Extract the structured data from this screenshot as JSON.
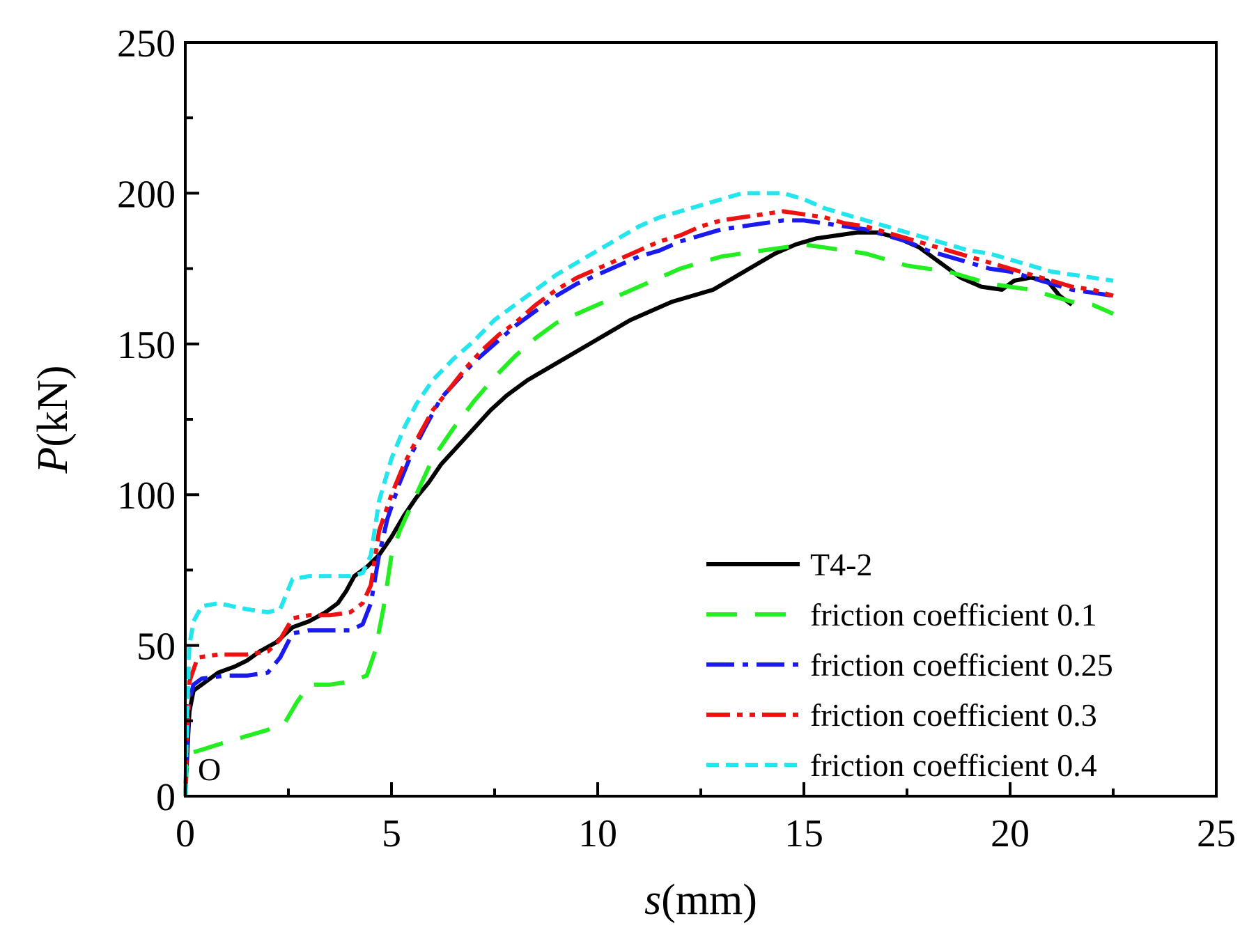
{
  "chart_data": {
    "type": "line",
    "xlabel_italic": "s",
    "xlabel_unit": "(mm)",
    "ylabel_italic": "P",
    "ylabel_unit": "(kN)",
    "xlim": [
      0,
      25
    ],
    "ylim": [
      0,
      250
    ],
    "xticks": [
      0,
      5,
      10,
      15,
      20,
      25
    ],
    "yticks": [
      0,
      50,
      100,
      150,
      200,
      250
    ],
    "xtick_labels": [
      "0",
      "5",
      "10",
      "15",
      "20",
      "25"
    ],
    "ytick_labels": [
      "0",
      "50",
      "100",
      "150",
      "200",
      "250"
    ],
    "annotation": "O",
    "legend_position": "bottom-right",
    "grid": false,
    "series": [
      {
        "name": "T4-2",
        "color": "#000000",
        "dash": "solid",
        "points": [
          [
            0,
            0
          ],
          [
            0.05,
            15
          ],
          [
            0.1,
            28
          ],
          [
            0.2,
            35
          ],
          [
            0.5,
            38
          ],
          [
            0.8,
            41
          ],
          [
            1.2,
            43
          ],
          [
            1.5,
            45
          ],
          [
            1.8,
            48
          ],
          [
            2.2,
            51
          ],
          [
            2.6,
            56
          ],
          [
            3.0,
            58
          ],
          [
            3.4,
            61
          ],
          [
            3.7,
            64
          ],
          [
            3.9,
            68
          ],
          [
            4.1,
            73
          ],
          [
            4.4,
            76
          ],
          [
            4.7,
            80
          ],
          [
            5.0,
            86
          ],
          [
            5.3,
            93
          ],
          [
            5.6,
            99
          ],
          [
            5.9,
            104
          ],
          [
            6.2,
            110
          ],
          [
            6.6,
            116
          ],
          [
            7.0,
            122
          ],
          [
            7.4,
            128
          ],
          [
            7.8,
            133
          ],
          [
            8.3,
            138
          ],
          [
            8.8,
            142
          ],
          [
            9.3,
            146
          ],
          [
            9.8,
            150
          ],
          [
            10.3,
            154
          ],
          [
            10.8,
            158
          ],
          [
            11.3,
            161
          ],
          [
            11.8,
            164
          ],
          [
            12.3,
            166
          ],
          [
            12.8,
            168
          ],
          [
            13.3,
            172
          ],
          [
            13.8,
            176
          ],
          [
            14.3,
            180
          ],
          [
            14.8,
            183
          ],
          [
            15.3,
            185
          ],
          [
            15.8,
            186
          ],
          [
            16.3,
            187
          ],
          [
            16.8,
            187
          ],
          [
            17.3,
            185
          ],
          [
            17.8,
            182
          ],
          [
            18.3,
            177
          ],
          [
            18.8,
            172
          ],
          [
            19.3,
            169
          ],
          [
            19.8,
            168
          ],
          [
            20.1,
            171
          ],
          [
            20.5,
            172
          ],
          [
            20.9,
            171
          ],
          [
            21.2,
            166
          ],
          [
            21.5,
            163
          ]
        ]
      },
      {
        "name": "friction coefficient 0.1",
        "color": "#22ee22",
        "dash": "long-dash",
        "points": [
          [
            0,
            0
          ],
          [
            0.05,
            14
          ],
          [
            0.3,
            15
          ],
          [
            1.0,
            18
          ],
          [
            2.0,
            22
          ],
          [
            2.4,
            24
          ],
          [
            2.7,
            31
          ],
          [
            3.0,
            37
          ],
          [
            3.5,
            37
          ],
          [
            4.0,
            38
          ],
          [
            4.4,
            40
          ],
          [
            4.6,
            48
          ],
          [
            4.8,
            62
          ],
          [
            5.0,
            80
          ],
          [
            5.2,
            88
          ],
          [
            5.6,
            100
          ],
          [
            6.0,
            112
          ],
          [
            6.5,
            122
          ],
          [
            7.0,
            131
          ],
          [
            7.5,
            139
          ],
          [
            8.0,
            146
          ],
          [
            8.5,
            152
          ],
          [
            9.0,
            157
          ],
          [
            9.5,
            160
          ],
          [
            10.0,
            163
          ],
          [
            10.5,
            166
          ],
          [
            11.0,
            169
          ],
          [
            11.5,
            172
          ],
          [
            12.0,
            175
          ],
          [
            12.5,
            177
          ],
          [
            13.0,
            179
          ],
          [
            13.5,
            180
          ],
          [
            14.0,
            181
          ],
          [
            14.5,
            182
          ],
          [
            15.0,
            183
          ],
          [
            15.5,
            182
          ],
          [
            16.0,
            181
          ],
          [
            16.5,
            180
          ],
          [
            17.0,
            178
          ],
          [
            17.5,
            176
          ],
          [
            18.0,
            175
          ],
          [
            18.5,
            174
          ],
          [
            19.0,
            172
          ],
          [
            19.5,
            170
          ],
          [
            20.0,
            169
          ],
          [
            20.5,
            168
          ],
          [
            21.0,
            166
          ],
          [
            21.5,
            164
          ],
          [
            22.0,
            163
          ],
          [
            22.5,
            160
          ]
        ]
      },
      {
        "name": "friction coefficient 0.25",
        "color": "#1a1aee",
        "dash": "dash-dot",
        "points": [
          [
            0,
            0
          ],
          [
            0.05,
            20
          ],
          [
            0.1,
            32
          ],
          [
            0.2,
            37
          ],
          [
            0.4,
            39
          ],
          [
            1.0,
            40
          ],
          [
            1.5,
            40
          ],
          [
            2.0,
            41
          ],
          [
            2.3,
            46
          ],
          [
            2.6,
            54
          ],
          [
            3.0,
            55
          ],
          [
            3.5,
            55
          ],
          [
            4.0,
            55
          ],
          [
            4.3,
            57
          ],
          [
            4.5,
            64
          ],
          [
            4.7,
            80
          ],
          [
            4.9,
            92
          ],
          [
            5.2,
            104
          ],
          [
            5.5,
            114
          ],
          [
            5.8,
            122
          ],
          [
            6.2,
            132
          ],
          [
            6.6,
            138
          ],
          [
            7.0,
            144
          ],
          [
            7.5,
            150
          ],
          [
            8.0,
            156
          ],
          [
            8.5,
            161
          ],
          [
            9.0,
            166
          ],
          [
            9.5,
            170
          ],
          [
            10.0,
            173
          ],
          [
            10.5,
            176
          ],
          [
            11.0,
            179
          ],
          [
            11.5,
            181
          ],
          [
            12.0,
            184
          ],
          [
            12.5,
            186
          ],
          [
            13.0,
            188
          ],
          [
            13.5,
            189
          ],
          [
            14.0,
            190
          ],
          [
            14.5,
            191
          ],
          [
            15.0,
            191
          ],
          [
            15.5,
            190
          ],
          [
            16.0,
            189
          ],
          [
            16.5,
            188
          ],
          [
            17.0,
            186
          ],
          [
            17.5,
            184
          ],
          [
            18.0,
            181
          ],
          [
            18.5,
            179
          ],
          [
            19.0,
            177
          ],
          [
            19.5,
            175
          ],
          [
            20.0,
            174
          ],
          [
            20.5,
            172
          ],
          [
            21.0,
            170
          ],
          [
            21.5,
            168
          ],
          [
            22.0,
            167
          ],
          [
            22.5,
            166
          ]
        ]
      },
      {
        "name": "friction coefficient 0.3",
        "color": "#ee1111",
        "dash": "dash-dot-dot",
        "points": [
          [
            0,
            0
          ],
          [
            0.05,
            22
          ],
          [
            0.1,
            38
          ],
          [
            0.3,
            46
          ],
          [
            0.8,
            47
          ],
          [
            1.5,
            47
          ],
          [
            2.0,
            48
          ],
          [
            2.3,
            52
          ],
          [
            2.6,
            59
          ],
          [
            3.0,
            60
          ],
          [
            3.5,
            60
          ],
          [
            4.0,
            61
          ],
          [
            4.3,
            64
          ],
          [
            4.5,
            70
          ],
          [
            4.7,
            88
          ],
          [
            5.0,
            100
          ],
          [
            5.3,
            110
          ],
          [
            5.6,
            118
          ],
          [
            6.0,
            128
          ],
          [
            6.4,
            135
          ],
          [
            6.8,
            142
          ],
          [
            7.2,
            148
          ],
          [
            7.6,
            153
          ],
          [
            8.0,
            157
          ],
          [
            8.5,
            163
          ],
          [
            9.0,
            168
          ],
          [
            9.5,
            172
          ],
          [
            10.0,
            175
          ],
          [
            10.5,
            178
          ],
          [
            11.0,
            181
          ],
          [
            11.5,
            184
          ],
          [
            12.0,
            186
          ],
          [
            12.5,
            189
          ],
          [
            13.0,
            191
          ],
          [
            13.5,
            192
          ],
          [
            14.0,
            193
          ],
          [
            14.5,
            194
          ],
          [
            15.0,
            193
          ],
          [
            15.5,
            192
          ],
          [
            16.0,
            190
          ],
          [
            16.5,
            189
          ],
          [
            17.0,
            187
          ],
          [
            17.5,
            185
          ],
          [
            18.0,
            183
          ],
          [
            18.5,
            181
          ],
          [
            19.0,
            179
          ],
          [
            19.5,
            177
          ],
          [
            20.0,
            175
          ],
          [
            20.5,
            173
          ],
          [
            21.0,
            171
          ],
          [
            21.5,
            169
          ],
          [
            22.0,
            168
          ],
          [
            22.5,
            166
          ]
        ]
      },
      {
        "name": "friction coefficient 0.4",
        "color": "#22e5ee",
        "dash": "short-dash",
        "points": [
          [
            0,
            0
          ],
          [
            0.05,
            30
          ],
          [
            0.1,
            50
          ],
          [
            0.2,
            58
          ],
          [
            0.4,
            63
          ],
          [
            0.8,
            64
          ],
          [
            1.5,
            62
          ],
          [
            2.0,
            61
          ],
          [
            2.3,
            62
          ],
          [
            2.6,
            72
          ],
          [
            3.0,
            73
          ],
          [
            3.5,
            73
          ],
          [
            4.0,
            73
          ],
          [
            4.3,
            74
          ],
          [
            4.5,
            80
          ],
          [
            4.7,
            98
          ],
          [
            5.0,
            112
          ],
          [
            5.3,
            122
          ],
          [
            5.6,
            130
          ],
          [
            6.0,
            138
          ],
          [
            6.5,
            145
          ],
          [
            7.0,
            151
          ],
          [
            7.5,
            158
          ],
          [
            8.0,
            163
          ],
          [
            8.5,
            168
          ],
          [
            9.0,
            173
          ],
          [
            9.5,
            177
          ],
          [
            10.0,
            181
          ],
          [
            10.5,
            185
          ],
          [
            11.0,
            189
          ],
          [
            11.5,
            192
          ],
          [
            12.0,
            194
          ],
          [
            12.5,
            196
          ],
          [
            13.0,
            198
          ],
          [
            13.5,
            200
          ],
          [
            14.0,
            200
          ],
          [
            14.5,
            200
          ],
          [
            15.0,
            198
          ],
          [
            15.5,
            195
          ],
          [
            16.0,
            193
          ],
          [
            16.5,
            191
          ],
          [
            17.0,
            189
          ],
          [
            17.5,
            187
          ],
          [
            18.0,
            185
          ],
          [
            18.5,
            183
          ],
          [
            19.0,
            181
          ],
          [
            19.5,
            180
          ],
          [
            20.0,
            178
          ],
          [
            20.5,
            176
          ],
          [
            21.0,
            174
          ],
          [
            21.5,
            173
          ],
          [
            22.0,
            172
          ],
          [
            22.5,
            171
          ]
        ]
      }
    ]
  }
}
